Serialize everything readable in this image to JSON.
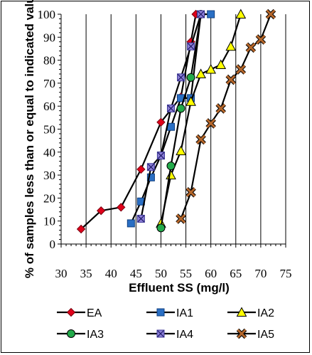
{
  "chart_data": {
    "type": "line",
    "xlabel": "Effluent SS (mg/l)",
    "ylabel": "% of samples less than or equal to indicated value",
    "xlim": [
      30,
      75
    ],
    "ylim": [
      0,
      100
    ],
    "x_ticks": [
      30,
      35,
      40,
      45,
      50,
      55,
      60,
      65,
      70,
      75
    ],
    "y_ticks": [
      0,
      10,
      20,
      30,
      40,
      50,
      60,
      70,
      80,
      90,
      100
    ],
    "grid": "vertical major gridlines",
    "legend_position": "bottom",
    "series": [
      {
        "name": "EA",
        "color": "#e0001a",
        "marker": "diamond",
        "points": [
          [
            34,
            6.5
          ],
          [
            38,
            14.5
          ],
          [
            42,
            16
          ],
          [
            46,
            32.5
          ],
          [
            50,
            53
          ],
          [
            54,
            64
          ],
          [
            56,
            88
          ],
          [
            57,
            100
          ]
        ]
      },
      {
        "name": "IA1",
        "color": "#2a6fc4",
        "marker": "square",
        "points": [
          [
            44,
            9
          ],
          [
            46,
            18.5
          ],
          [
            48,
            29
          ],
          [
            50,
            38.5
          ],
          [
            52,
            51
          ],
          [
            54,
            63.5
          ],
          [
            56,
            63.5
          ],
          [
            58,
            100
          ],
          [
            60,
            100
          ]
        ]
      },
      {
        "name": "IA2",
        "color": "#ffff00",
        "marker": "triangle",
        "points": [
          [
            50,
            9
          ],
          [
            52,
            30
          ],
          [
            54,
            40.5
          ],
          [
            56,
            62
          ],
          [
            58,
            74
          ],
          [
            60,
            76
          ],
          [
            62,
            78
          ],
          [
            64,
            86
          ],
          [
            66,
            100
          ]
        ]
      },
      {
        "name": "IA3",
        "color": "#22aa4a",
        "marker": "circle",
        "points": [
          [
            50,
            7
          ],
          [
            52,
            34
          ],
          [
            54,
            59
          ],
          [
            56,
            72.5
          ],
          [
            58,
            100
          ]
        ]
      },
      {
        "name": "IA4",
        "color": "#8c7fd6",
        "marker": "x-square",
        "points": [
          [
            46,
            11
          ],
          [
            48,
            33.5
          ],
          [
            50,
            38.5
          ],
          [
            52,
            59
          ],
          [
            54,
            72.5
          ],
          [
            56,
            86
          ],
          [
            58,
            100
          ]
        ]
      },
      {
        "name": "IA5",
        "color": "#b5662a",
        "marker": "x",
        "points": [
          [
            54,
            11
          ],
          [
            56,
            22.5
          ],
          [
            58,
            45.5
          ],
          [
            60,
            52.5
          ],
          [
            62,
            59
          ],
          [
            64,
            71.5
          ],
          [
            66,
            76
          ],
          [
            68,
            85.5
          ],
          [
            70,
            89
          ],
          [
            72,
            100
          ]
        ]
      }
    ]
  }
}
